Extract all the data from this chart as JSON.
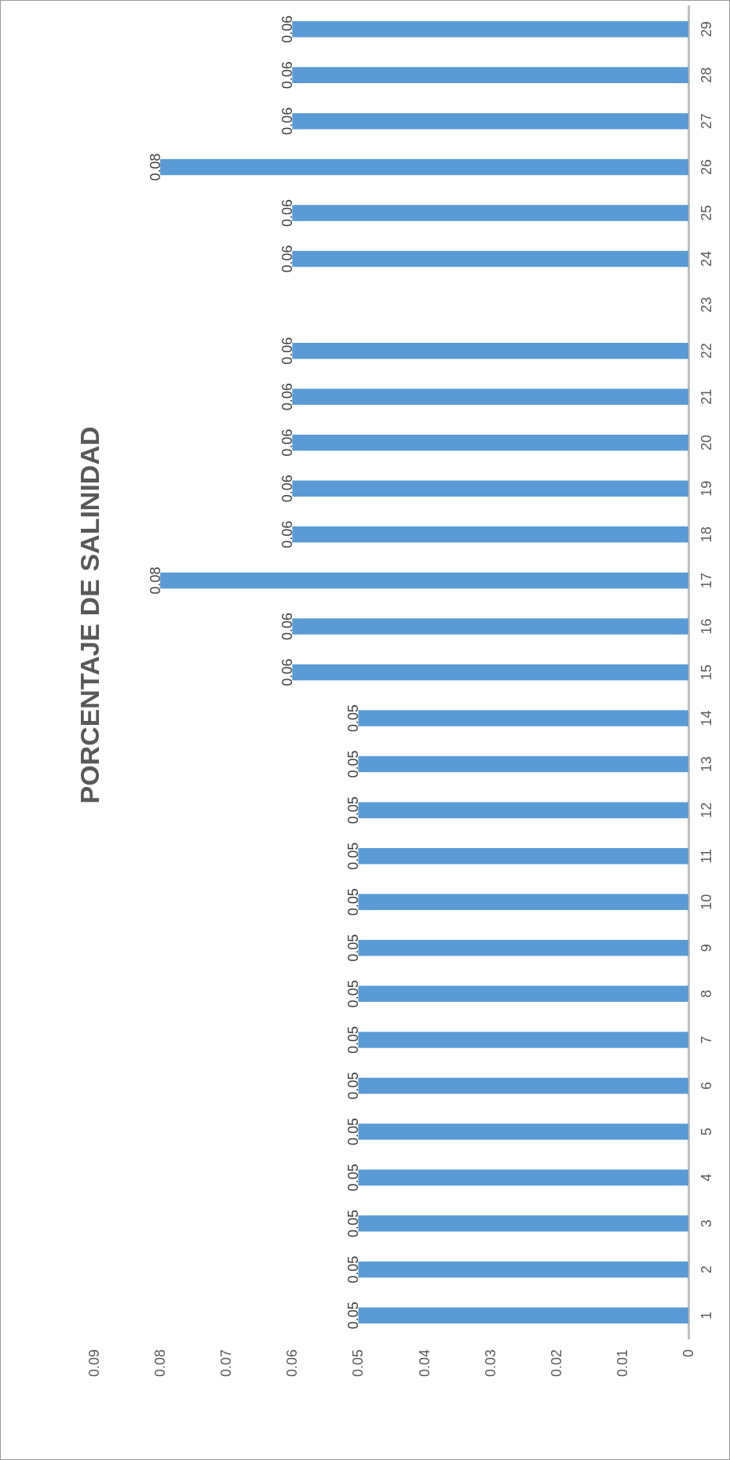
{
  "chart_data": {
    "type": "bar",
    "title": "PORCENTAJE DE SALINIDAD",
    "orientation": "horizontal",
    "categories": [
      "29",
      "28",
      "27",
      "26",
      "25",
      "24",
      "23",
      "22",
      "21",
      "20",
      "19",
      "18",
      "17",
      "16",
      "15",
      "14",
      "13",
      "12",
      "11",
      "10",
      "9",
      "8",
      "7",
      "6",
      "5",
      "4",
      "3",
      "2",
      "1"
    ],
    "values": [
      0.06,
      0.06,
      0.06,
      0.08,
      0.06,
      0.06,
      null,
      0.06,
      0.06,
      0.06,
      0.06,
      0.06,
      0.08,
      0.06,
      0.06,
      0.05,
      0.05,
      0.05,
      0.05,
      0.05,
      0.05,
      0.05,
      0.05,
      0.05,
      0.05,
      0.05,
      0.05,
      0.05,
      0.05
    ],
    "color": "#5b9bd5",
    "xlim": [
      0.09,
      0
    ],
    "xticks": [
      0,
      0.01,
      0.02,
      0.03,
      0.04,
      0.05,
      0.06,
      0.07,
      0.08,
      0.09
    ],
    "grid": false,
    "data_labels": true
  }
}
